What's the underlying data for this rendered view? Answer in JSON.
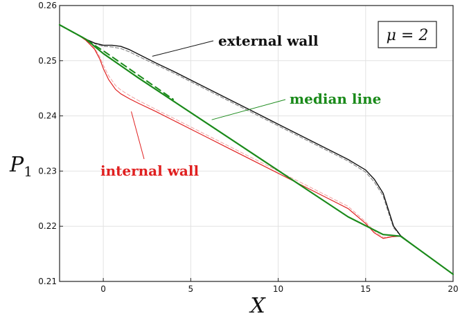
{
  "chart_data": {
    "type": "line",
    "xlabel": "X",
    "ylabel": "P",
    "ylabel_sub": "1",
    "xlim": [
      -2.5,
      20
    ],
    "ylim": [
      0.21,
      0.26
    ],
    "x_ticks": [
      0,
      5,
      10,
      15,
      20
    ],
    "y_ticks": [
      0.21,
      0.22,
      0.23,
      0.24,
      0.25,
      0.26
    ],
    "x_tick_labels": [
      "0",
      "5",
      "10",
      "15",
      "20"
    ],
    "y_tick_labels": [
      "0.21",
      "0.22",
      "0.23",
      "0.24",
      "0.25",
      "0.26"
    ],
    "grid": true,
    "parameter_box": "μ = 2",
    "colors": {
      "external": "#111111",
      "median": "#1a8a1a",
      "internal": "#e02020"
    },
    "annotations": [
      {
        "text": "external wall",
        "color": "#111111",
        "point": [
          2.8,
          0.2508
        ]
      },
      {
        "text": "median line",
        "color": "#1a8a1a",
        "point": [
          6.2,
          0.2393
        ]
      },
      {
        "text": "internal wall",
        "color": "#e02020",
        "point": [
          1.6,
          0.2408
        ]
      }
    ],
    "series": [
      {
        "key": "external",
        "style": "solid",
        "color": "#111111",
        "x": [
          -2.5,
          -1.5,
          -1,
          -0.5,
          0,
          0.5,
          1,
          1.5,
          2,
          3,
          4,
          5,
          6,
          7,
          8,
          9,
          10,
          11,
          12,
          13,
          14,
          15,
          15.5,
          16,
          16.3,
          16.6,
          17,
          18,
          19,
          20
        ],
        "y": [
          0.2565,
          0.2548,
          0.2539,
          0.2532,
          0.2528,
          0.2528,
          0.2526,
          0.252,
          0.2512,
          0.2496,
          0.2481,
          0.2465,
          0.2449,
          0.2433,
          0.2417,
          0.2401,
          0.2385,
          0.2369,
          0.2353,
          0.2337,
          0.2321,
          0.2302,
          0.2285,
          0.226,
          0.223,
          0.22,
          0.2183,
          0.2159,
          0.2136,
          0.2113
        ]
      },
      {
        "key": "external_approx",
        "style": "dashed",
        "color": "#888888",
        "x": [
          -2.5,
          -1.5,
          -1,
          -0.5,
          0,
          0.5,
          1,
          1.5,
          2,
          3,
          4,
          5,
          6,
          7,
          8,
          9,
          10,
          11,
          12,
          13,
          14,
          15,
          15.5,
          16,
          16.3,
          16.6,
          17,
          18,
          19,
          20
        ],
        "y": [
          0.2565,
          0.2548,
          0.2539,
          0.2531,
          0.2526,
          0.2525,
          0.2522,
          0.2516,
          0.2508,
          0.2493,
          0.2478,
          0.2462,
          0.2446,
          0.243,
          0.2414,
          0.2398,
          0.2382,
          0.2366,
          0.235,
          0.2334,
          0.2318,
          0.2298,
          0.228,
          0.2255,
          0.2225,
          0.2197,
          0.2183,
          0.2159,
          0.2136,
          0.2113
        ]
      },
      {
        "key": "median",
        "style": "solid",
        "color": "#1a8a1a",
        "x": [
          -2.5,
          -1,
          0,
          1,
          2,
          4,
          6,
          8,
          10,
          12,
          14,
          16,
          17,
          18,
          19,
          20
        ],
        "y": [
          0.2565,
          0.2539,
          0.2513,
          0.2491,
          0.2469,
          0.2427,
          0.2385,
          0.2343,
          0.2301,
          0.2259,
          0.2217,
          0.2185,
          0.2182,
          0.2159,
          0.2136,
          0.2113
        ]
      },
      {
        "key": "median_approx",
        "style": "dashed",
        "color": "#1a8a1a",
        "x": [
          -2.5,
          -1,
          -0.5,
          0,
          0.5,
          1,
          1.5,
          2,
          3,
          4
        ],
        "y": [
          0.2565,
          0.2539,
          0.2528,
          0.2518,
          0.2507,
          0.2496,
          0.2485,
          0.2474,
          0.2452,
          0.243
        ]
      },
      {
        "key": "internal",
        "style": "solid",
        "color": "#e02020",
        "x": [
          -2.5,
          -1.5,
          -1,
          -0.5,
          -0.2,
          0,
          0.3,
          0.7,
          1,
          1.5,
          2,
          3,
          4,
          5,
          6,
          7,
          8,
          9,
          10,
          11,
          12,
          13,
          14,
          15,
          15.5,
          16,
          16.5,
          17,
          18,
          19,
          20
        ],
        "y": [
          0.2565,
          0.2548,
          0.2537,
          0.2521,
          0.2503,
          0.2486,
          0.2466,
          0.2448,
          0.244,
          0.2431,
          0.2423,
          0.2408,
          0.2392,
          0.2376,
          0.236,
          0.2344,
          0.2328,
          0.2312,
          0.2296,
          0.228,
          0.2264,
          0.2248,
          0.2232,
          0.2205,
          0.2188,
          0.2178,
          0.2181,
          0.2182,
          0.2159,
          0.2136,
          0.2113
        ]
      },
      {
        "key": "internal_approx",
        "style": "dashed",
        "color": "#f0a0a0",
        "x": [
          -2.5,
          -1.5,
          -1,
          -0.5,
          -0.2,
          0,
          0.3,
          0.7,
          1,
          1.5,
          2,
          3,
          4,
          5,
          6,
          7,
          8,
          9,
          10,
          11,
          12,
          13,
          14,
          15,
          15.5,
          16,
          16.5,
          17,
          18,
          19,
          20
        ],
        "y": [
          0.2565,
          0.2548,
          0.2537,
          0.2523,
          0.2507,
          0.2492,
          0.2473,
          0.2455,
          0.2447,
          0.2437,
          0.2428,
          0.2412,
          0.2396,
          0.238,
          0.2364,
          0.2348,
          0.2332,
          0.2316,
          0.23,
          0.2284,
          0.2268,
          0.2252,
          0.2236,
          0.2208,
          0.2191,
          0.218,
          0.2181,
          0.2182,
          0.2159,
          0.2136,
          0.2113
        ]
      }
    ]
  }
}
